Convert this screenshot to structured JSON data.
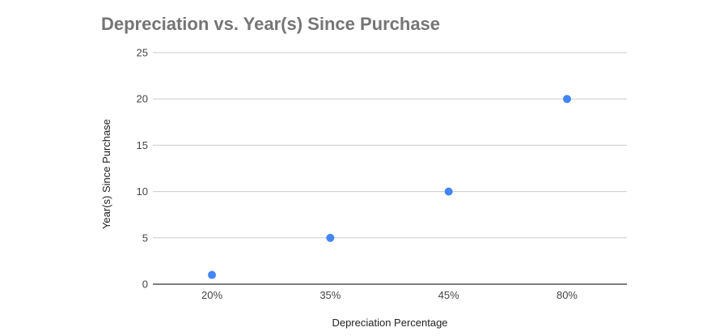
{
  "chart_data": {
    "type": "scatter",
    "title": "Depreciation vs. Year(s) Since Purchase",
    "xlabel": "Depreciation Percentage",
    "ylabel": "Year(s) Since Purchase",
    "categories": [
      "20%",
      "35%",
      "45%",
      "80%"
    ],
    "y_ticks": [
      "0",
      "5",
      "10",
      "15",
      "20",
      "25"
    ],
    "ylim": [
      0,
      25
    ],
    "grid": true,
    "legend": "none",
    "series": [
      {
        "values": [
          1,
          5,
          10,
          20
        ],
        "color": "#4285f4"
      }
    ]
  },
  "colors": {
    "title": "#757575",
    "gridline": "#cccccc",
    "baseline": "#333333",
    "point": "#4285f4"
  }
}
